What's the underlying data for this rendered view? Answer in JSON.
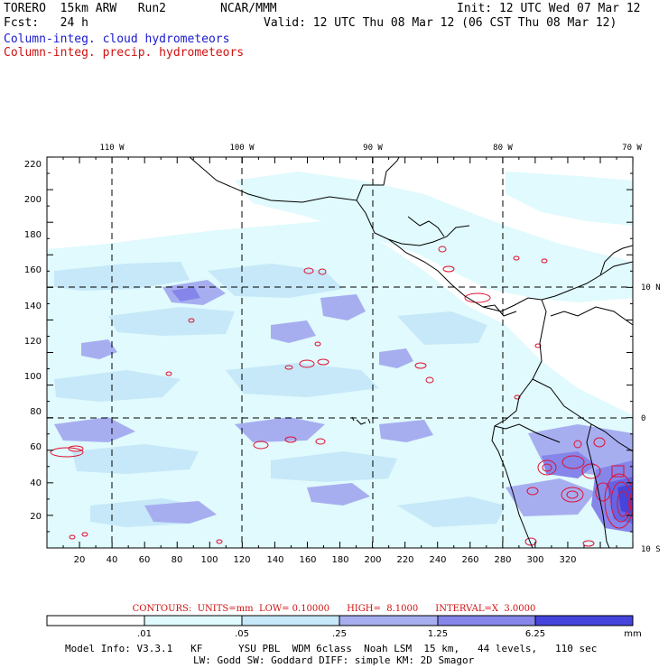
{
  "header": {
    "model": "TORERO  15km ARW   Run2",
    "org": "NCAR/MMM",
    "init": "Init: 12 UTC Wed 07 Mar 12",
    "fcst": "Fcst:   24 h",
    "valid": "Valid: 12 UTC Thu 08 Mar 12 (06 CST Thu 08 Mar 12)",
    "field1": "Column-integ. cloud hydrometeors",
    "field2": "Column-integ. precip. hydrometeors"
  },
  "axes": {
    "top_lon_labels": [
      "110 W",
      "100 W",
      "90 W",
      "80 W",
      "70 W"
    ],
    "right_lat_labels": [
      "10 N",
      "0",
      "10 S"
    ],
    "bottom_ticks": [
      "20",
      "40",
      "60",
      "80",
      "100",
      "120",
      "140",
      "160",
      "180",
      "200",
      "220",
      "240",
      "260",
      "280",
      "300",
      "320"
    ],
    "left_ticks": [
      "20",
      "40",
      "60",
      "80",
      "100",
      "120",
      "140",
      "160",
      "180",
      "200",
      "220"
    ]
  },
  "contours_text": "CONTOURS:  UNITS=mm  LOW= 0.10000      HIGH=  8.1000      INTERVAL=X  3.0000",
  "colorbar": {
    "labels": [
      ".01",
      ".05",
      ".25",
      "1.25",
      "6.25"
    ],
    "unit": "mm",
    "colors": [
      "#ffffff",
      "#e0fafd",
      "#c6e8f8",
      "#a7aef0",
      "#8585ea",
      "#6464e4",
      "#4545dd"
    ]
  },
  "footer": {
    "line1": "Model Info: V3.3.1   KF      YSU PBL  WDM 6class  Noah LSM  15 km,   44 levels,   110 sec",
    "line2": "LW: Godd SW: Goddard DIFF: simple KM: 2D Smagor"
  },
  "colors": {
    "land_line": "#000000",
    "precip_contour": "#e01030",
    "grid": "#000000"
  }
}
